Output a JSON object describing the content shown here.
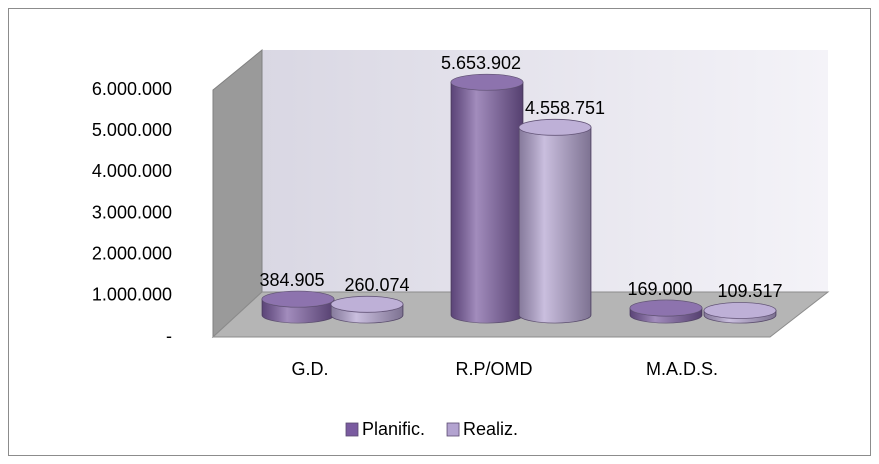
{
  "chart_data": {
    "type": "bar3d",
    "categories": [
      "G.D.",
      "R.P/OMD",
      "M.A.D.S."
    ],
    "series": [
      {
        "name": "Planific.",
        "color": "#7a5ba0",
        "values": [
          384905,
          5653902,
          169000
        ],
        "value_labels": [
          "384.905",
          "5.653.902",
          "169.000"
        ]
      },
      {
        "name": "Realiz.",
        "color": "#b3a3d0",
        "values": [
          260074,
          4558751,
          109517
        ],
        "value_labels": [
          "260.074",
          "4.558.751",
          "109.517"
        ]
      }
    ],
    "ylim": [
      0,
      6000000
    ],
    "yticks": [
      {
        "value": 0,
        "label": "-"
      },
      {
        "value": 1000000,
        "label": "1.000.000"
      },
      {
        "value": 2000000,
        "label": "2.000.000"
      },
      {
        "value": 3000000,
        "label": "3.000.000"
      },
      {
        "value": 4000000,
        "label": "4.000.000"
      },
      {
        "value": 5000000,
        "label": "5.000.000"
      },
      {
        "value": 6000000,
        "label": "6.000.000"
      }
    ],
    "legend": "bottom"
  }
}
